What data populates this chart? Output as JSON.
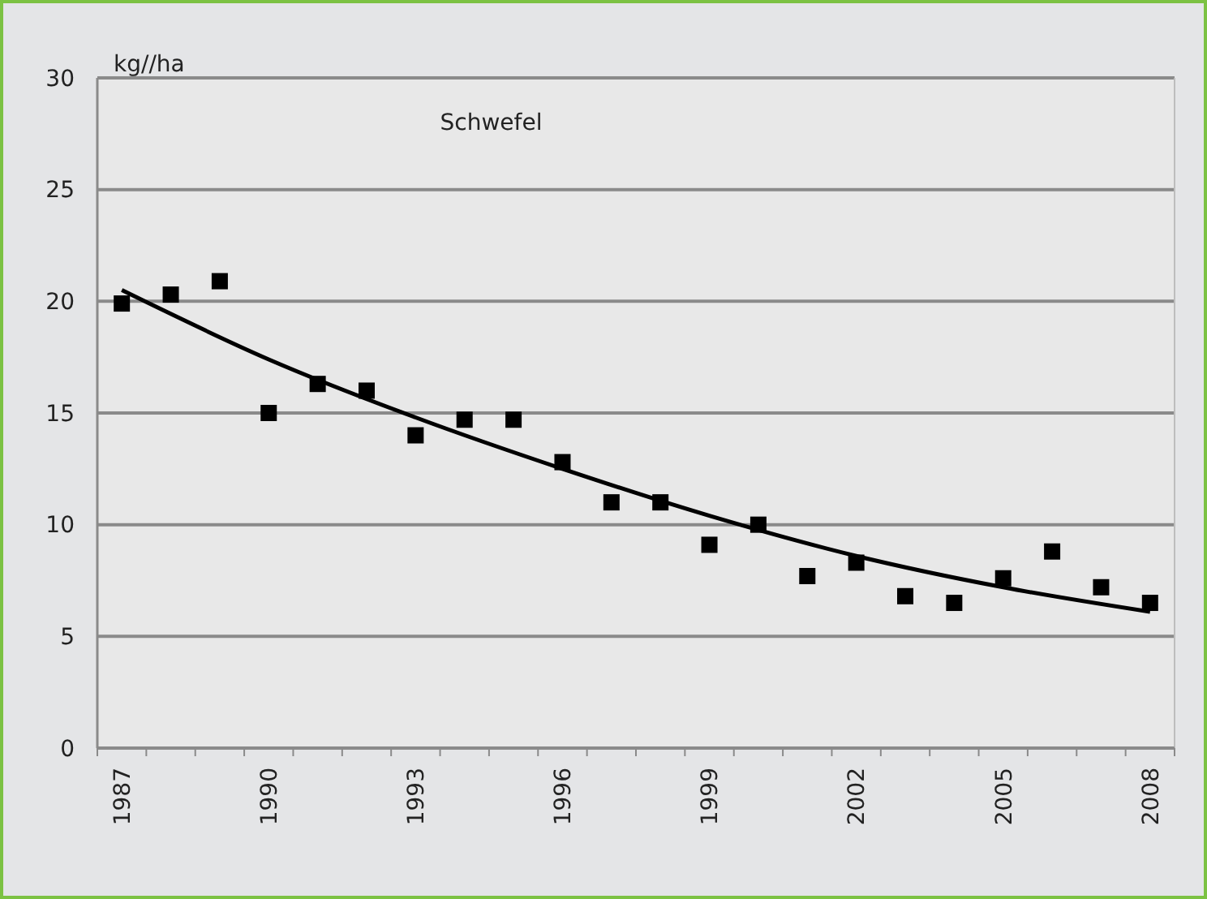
{
  "chart_data": {
    "type": "scatter",
    "title": "Schwefel",
    "ylabel": "kg//ha",
    "xlim": [
      1986.5,
      2008.5
    ],
    "xticks": [
      1987,
      1990,
      1993,
      1996,
      1999,
      2002,
      2005,
      2008
    ],
    "ylim": [
      0,
      30
    ],
    "yticks": [
      0,
      5,
      10,
      15,
      20,
      25,
      30
    ],
    "grid": "y",
    "marker": "square",
    "series": [
      {
        "color": "#000000",
        "x": [
          1987,
          1988,
          1989,
          1990,
          1991,
          1992,
          1993,
          1994,
          1995,
          1996,
          1997,
          1998,
          1999,
          2000,
          2001,
          2002,
          2003,
          2004,
          2005,
          2006,
          2007,
          2008
        ],
        "values": [
          19.9,
          20.3,
          20.9,
          15.0,
          16.3,
          16.0,
          14.0,
          14.7,
          14.7,
          12.8,
          11.0,
          11.0,
          9.1,
          10.0,
          7.7,
          8.3,
          6.8,
          6.5,
          7.6,
          8.8,
          7.2,
          6.5
        ]
      },
      {
        "type": "line",
        "marker": "none",
        "color": "#000000",
        "x": [
          1987,
          1990,
          1993,
          1996,
          1999,
          2002,
          2005,
          2008
        ],
        "values": [
          20.5,
          17.4,
          14.8,
          12.5,
          10.4,
          8.6,
          7.2,
          6.1
        ]
      }
    ]
  }
}
